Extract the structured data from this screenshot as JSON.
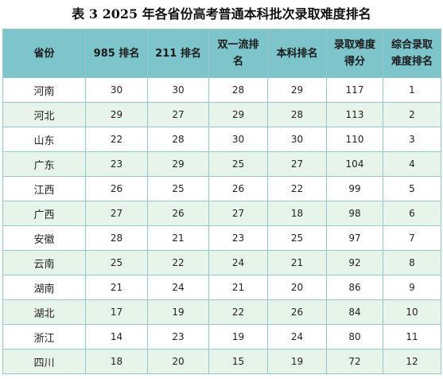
{
  "title": "表 3  2025 年各省份高考普通本科批次录取难度排名",
  "headers": [
    "省份",
    "985 排名",
    "211 排名",
    "双一流排名",
    "本科排名",
    "录取难度得分",
    "综合录取难度排名"
  ],
  "rows": [
    [
      "河南",
      "30",
      "30",
      "28",
      "29",
      "117",
      "1"
    ],
    [
      "河北",
      "29",
      "27",
      "29",
      "28",
      "113",
      "2"
    ],
    [
      "山东",
      "22",
      "28",
      "30",
      "30",
      "110",
      "3"
    ],
    [
      "广东",
      "23",
      "29",
      "25",
      "27",
      "104",
      "4"
    ],
    [
      "江西",
      "26",
      "25",
      "26",
      "22",
      "99",
      "5"
    ],
    [
      "广西",
      "27",
      "26",
      "27",
      "18",
      "98",
      "6"
    ],
    [
      "安徽",
      "28",
      "21",
      "23",
      "25",
      "97",
      "7"
    ],
    [
      "云南",
      "25",
      "22",
      "24",
      "21",
      "92",
      "8"
    ],
    [
      "湖南",
      "21",
      "24",
      "21",
      "20",
      "86",
      "9"
    ],
    [
      "湖北",
      "17",
      "19",
      "22",
      "26",
      "84",
      "10"
    ],
    [
      "浙江",
      "14",
      "23",
      "19",
      "24",
      "80",
      "11"
    ],
    [
      "四川",
      "18",
      "20",
      "15",
      "19",
      "72",
      "12"
    ]
  ]
}
